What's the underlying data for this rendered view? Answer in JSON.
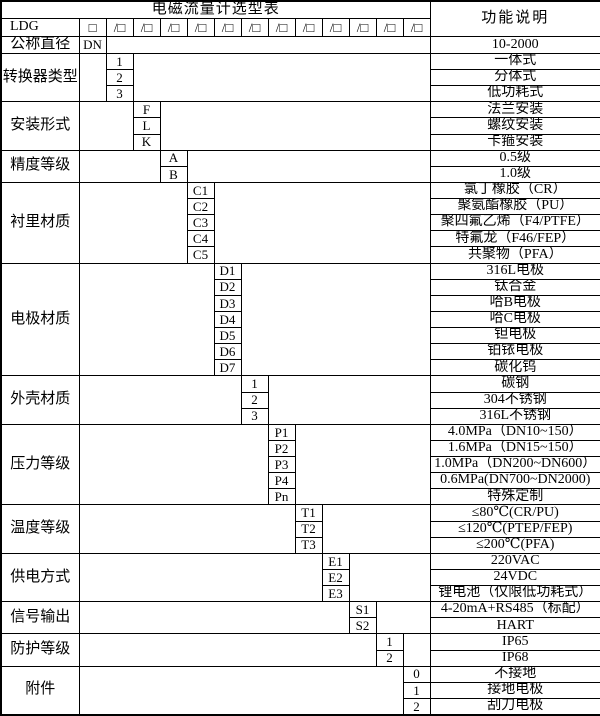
{
  "title": "电磁流量计选型表",
  "header": {
    "function_desc": "功能说明"
  },
  "model_row": {
    "prefix": "LDG",
    "base_box": "□",
    "slot_box": "/□",
    "slot_count": 12
  },
  "colors": {
    "border": "#000000",
    "background": "#ffffff",
    "text": "#000000"
  },
  "sections": [
    {
      "label": "公称直径",
      "codes": [
        "DN"
      ],
      "descriptions": [
        "10-2000"
      ]
    },
    {
      "label": "转换器类型",
      "codes": [
        "1",
        "2",
        "3"
      ],
      "descriptions": [
        "一体式",
        "分体式",
        "低功耗式"
      ]
    },
    {
      "label": "安装形式",
      "codes": [
        "F",
        "L",
        "K"
      ],
      "descriptions": [
        "法兰安装",
        "螺纹安装",
        "卡箍安装"
      ]
    },
    {
      "label": "精度等级",
      "codes": [
        "A",
        "B"
      ],
      "descriptions": [
        "0.5级",
        "1.0级"
      ]
    },
    {
      "label": "衬里材质",
      "codes": [
        "C1",
        "C2",
        "C3",
        "C4",
        "C5"
      ],
      "descriptions": [
        "氯丁橡胶（CR）",
        "聚氨酯橡胶（PU）",
        "聚四氟乙烯（F4/PTFE）",
        "特氟龙（F46/FEP）",
        "共聚物（PFA）"
      ]
    },
    {
      "label": "电极材质",
      "codes": [
        "D1",
        "D2",
        "D3",
        "D4",
        "D5",
        "D6",
        "D7"
      ],
      "descriptions": [
        "316L电极",
        "钛合金",
        "哈B电极",
        "哈C电极",
        "钽电极",
        "铂铱电极",
        "碳化钨"
      ]
    },
    {
      "label": "外壳材质",
      "codes": [
        "1",
        "2",
        "3"
      ],
      "descriptions": [
        "碳钢",
        "304不锈钢",
        "316L不锈钢"
      ]
    },
    {
      "label": "压力等级",
      "codes": [
        "P1",
        "P2",
        "P3",
        "P4",
        "Pn"
      ],
      "descriptions": [
        "4.0MPa（DN10~150）",
        "1.6MPa（DN15~150）",
        "1.0MPa（DN200~DN600）",
        "0.6MPa(DN700~DN2000)",
        "特殊定制"
      ]
    },
    {
      "label": "温度等级",
      "codes": [
        "T1",
        "T2",
        "T3"
      ],
      "descriptions": [
        "≤80℃(CR/PU)",
        "≤120℃(PTEP/FEP)",
        "≤200℃(PFA)"
      ]
    },
    {
      "label": "供电方式",
      "codes": [
        "E1",
        "E2",
        "E3"
      ],
      "descriptions": [
        "220VAC",
        "24VDC",
        "锂电池（仅限低功耗式）"
      ]
    },
    {
      "label": "信号输出",
      "codes": [
        "S1",
        "S2"
      ],
      "descriptions": [
        "4-20mA+RS485（标配）",
        "HART"
      ]
    },
    {
      "label": "防护等级",
      "codes": [
        "1",
        "2"
      ],
      "descriptions": [
        "IP65",
        "IP68"
      ]
    },
    {
      "label": "附件",
      "codes": [
        "0",
        "1",
        "2"
      ],
      "descriptions": [
        "不接地",
        "接地电极",
        "刮刀电极"
      ]
    }
  ]
}
